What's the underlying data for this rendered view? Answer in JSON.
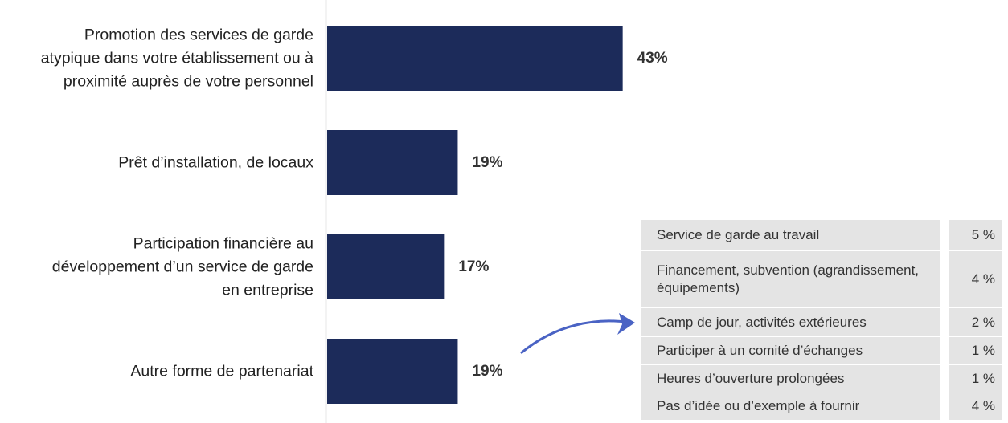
{
  "chart_data": {
    "type": "bar",
    "orientation": "horizontal",
    "categories": [
      "Promotion des services de garde atypique dans votre établissement ou à proximité auprès de votre personnel",
      "Prêt d’installation, de locaux",
      "Participation financière au développement d’un service de garde en entreprise",
      "Autre forme de partenariat"
    ],
    "values": [
      43,
      19,
      17,
      19
    ],
    "value_labels": [
      "43%",
      "19%",
      "17%",
      "19%"
    ],
    "color": "#1c2b5a"
  },
  "table": {
    "rows": [
      [
        "Service de garde au travail",
        "5 %"
      ],
      [
        "Financement, subvention (agrandissement, équipements)",
        "4 %"
      ],
      [
        "Camp de jour, activités extérieures",
        "2 %"
      ],
      [
        "Participer à un comité d’échanges",
        "1 %"
      ],
      [
        "Heures d’ouverture prolongées",
        "1 %"
      ],
      [
        "Pas d’idée ou d’exemple à fournir",
        "4 %"
      ]
    ]
  }
}
